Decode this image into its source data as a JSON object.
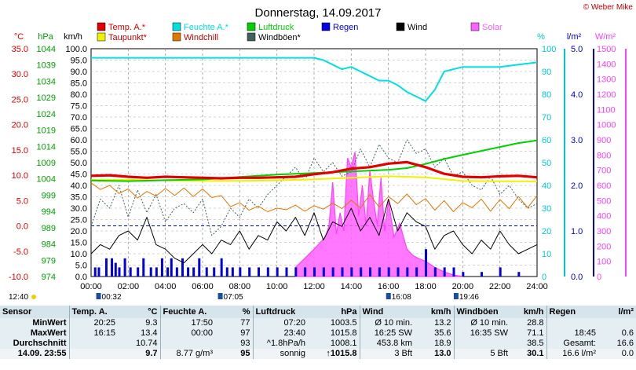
{
  "chart_data": {
    "type": "line",
    "title": "Donnerstag, 14.09.2017",
    "copyright": "© Weber Mike",
    "x_ticks": [
      "00:00",
      "02:00",
      "04:00",
      "06:00",
      "08:00",
      "10:00",
      "12:00",
      "14:00",
      "16:00",
      "18:00",
      "20:00",
      "22:00",
      "24:00"
    ],
    "axes": {
      "temp": {
        "unit": "°C",
        "ticks": [
          "35.0",
          "30.0",
          "25.0",
          "20.0",
          "15.0",
          "10.0",
          "5.0",
          "0.0",
          "-5.0",
          "-10.0"
        ],
        "range": [
          -10,
          35
        ],
        "color": "#e00000"
      },
      "press": {
        "unit": "hPa",
        "ticks": [
          "1044",
          "1039",
          "1034",
          "1029",
          "1024",
          "1019",
          "1014",
          "1009",
          "1004",
          "999",
          "994",
          "989",
          "984",
          "979",
          "974"
        ],
        "range": [
          974,
          1044
        ],
        "color": "#00b000"
      },
      "wind": {
        "unit": "km/h",
        "ticks": [
          "100.0",
          "95.0",
          "90.0",
          "85.0",
          "80.0",
          "75.0",
          "70.0",
          "65.0",
          "60.0",
          "55.0",
          "50.0",
          "45.0",
          "40.0",
          "35.0",
          "30.0",
          "25.0",
          "20.0",
          "15.0",
          "10.0",
          "5.0",
          "0.0"
        ],
        "range": [
          0,
          100
        ],
        "color": "#000000"
      },
      "hum": {
        "unit": "%",
        "ticks": [
          "100",
          "90",
          "80",
          "70",
          "60",
          "50",
          "40",
          "30",
          "20",
          "10",
          "0"
        ],
        "range": [
          0,
          100
        ],
        "color": "#00c8d0"
      },
      "rain": {
        "unit": "l/m²",
        "ticks": [
          "5.0",
          "4.0",
          "3.0",
          "2.0",
          "1.0",
          "0.0"
        ],
        "range": [
          0,
          5
        ],
        "color": "#0000c0"
      },
      "solar": {
        "unit": "W/m²",
        "ticks": [
          "1500",
          "1400",
          "1300",
          "1200",
          "1100",
          "1000",
          "900",
          "800",
          "700",
          "600",
          "500",
          "400",
          "300",
          "200",
          "100",
          "0"
        ],
        "range": [
          0,
          1500
        ],
        "color": "#ff40ff"
      }
    },
    "legend": [
      {
        "name": "Temp. A.*",
        "color": "#e00000"
      },
      {
        "name": "Feuchte A.*",
        "color": "#00e0e0"
      },
      {
        "name": "Luftdruck",
        "color": "#00d000"
      },
      {
        "name": "Regen",
        "color": "#0000e0"
      },
      {
        "name": "Wind",
        "color": "#000000"
      },
      {
        "name": "Solar",
        "color": "#ff60ff"
      },
      {
        "name": "Taupunkt*",
        "color": "#f0f000"
      },
      {
        "name": "Windchill",
        "color": "#e07800"
      },
      {
        "name": "Windböen*",
        "color": "#406060"
      }
    ],
    "series": [
      {
        "name": "Temp. A.*",
        "axis": "temp",
        "color": "#e00000",
        "width": 3.2,
        "x": [
          0,
          1,
          2,
          3,
          4,
          5,
          6,
          7,
          8,
          9,
          10,
          11,
          12,
          13,
          14,
          15,
          16,
          17,
          18,
          19,
          20,
          21,
          22,
          23,
          24
        ],
        "y": [
          9.9,
          10.0,
          9.7,
          9.5,
          9.7,
          9.6,
          9.5,
          9.4,
          9.5,
          9.5,
          9.6,
          9.7,
          10.2,
          10.6,
          11.3,
          11.6,
          12.3,
          12.6,
          11.6,
          10.3,
          9.7,
          9.6,
          9.8,
          9.9,
          9.6
        ]
      },
      {
        "name": "Feuchte A.*",
        "axis": "hum",
        "color": "#00e0e0",
        "width": 2,
        "x": [
          0,
          2,
          4,
          6,
          8,
          10,
          11,
          12,
          12.5,
          13,
          13.5,
          14,
          14.5,
          15,
          15.5,
          16,
          16.5,
          17,
          17.5,
          18,
          18.5,
          19,
          20,
          21,
          22,
          23,
          24
        ],
        "y": [
          96,
          96,
          96,
          96,
          96,
          96,
          96,
          96,
          95,
          93,
          91,
          92,
          90,
          88,
          86,
          86,
          84,
          81,
          79,
          77,
          82,
          90,
          92,
          92,
          92,
          93,
          94
        ]
      },
      {
        "name": "Luftdruck",
        "axis": "press",
        "color": "#00d000",
        "width": 2,
        "x": [
          0,
          2,
          4,
          6,
          8,
          10,
          12,
          14,
          16,
          17,
          18,
          19,
          20,
          21,
          22,
          23,
          24
        ],
        "y": [
          1003.5,
          1003.3,
          1003.6,
          1003.8,
          1004.6,
          1005.3,
          1005.8,
          1006.3,
          1006.8,
          1007.3,
          1008.6,
          1010.1,
          1011.4,
          1012.6,
          1013.8,
          1015.0,
          1015.8
        ]
      },
      {
        "name": "Taupunkt*",
        "axis": "temp",
        "color": "#f0f000",
        "width": 2,
        "x": [
          0,
          2,
          4,
          6,
          8,
          10,
          12,
          14,
          16,
          18,
          20,
          22,
          24
        ],
        "y": [
          9.1,
          9.1,
          9.0,
          8.9,
          8.9,
          9.0,
          9.2,
          9.5,
          9.8,
          9.6,
          8.9,
          8.8,
          8.8
        ]
      },
      {
        "name": "Windchill",
        "axis": "temp",
        "color": "#e07800",
        "width": 1,
        "x": [
          0,
          0.5,
          1,
          1.5,
          2,
          2.5,
          3,
          3.5,
          4,
          4.5,
          5,
          5.5,
          6,
          6.5,
          7,
          7.5,
          8,
          8.5,
          9,
          9.5,
          10,
          10.5,
          11,
          11.5,
          12,
          12.5,
          13,
          13.5,
          14,
          14.5,
          15,
          15.5,
          16,
          16.5,
          17,
          17.5,
          18,
          18.5,
          19,
          19.5,
          20,
          20.5,
          21,
          21.5,
          22,
          22.5,
          23,
          23.5,
          24
        ],
        "y": [
          8.5,
          7.2,
          8.0,
          6.4,
          7.3,
          5.5,
          6.8,
          5.9,
          7.4,
          6.0,
          7.5,
          5.8,
          7.3,
          5.6,
          6.0,
          3.8,
          4.6,
          3.1,
          3.9,
          2.8,
          3.5,
          3.2,
          4.1,
          2.9,
          4.0,
          3.3,
          4.5,
          3.4,
          5.1,
          3.5,
          6.2,
          3.7,
          5.8,
          4.4,
          6.3,
          4.2,
          5.4,
          3.1,
          5.0,
          2.8,
          4.6,
          3.6,
          5.3,
          2.9,
          5.2,
          3.4,
          5.8,
          3.6,
          6.0
        ]
      },
      {
        "name": "Windböen*",
        "axis": "wind",
        "color": "#406060",
        "width": 1,
        "dash": "2,2",
        "x": [
          0,
          0.5,
          1,
          1.5,
          2,
          2.5,
          3,
          3.5,
          4,
          4.5,
          5,
          5.5,
          6,
          6.5,
          7,
          7.5,
          8,
          8.5,
          9,
          9.5,
          10,
          10.5,
          11,
          11.5,
          12,
          12.5,
          13,
          13.5,
          14,
          14.5,
          15,
          15.5,
          16,
          16.5,
          17,
          17.5,
          18,
          18.5,
          19,
          19.5,
          20,
          20.5,
          21,
          21.5,
          22,
          22.5,
          23,
          23.5,
          24
        ],
        "y": [
          22,
          34,
          30,
          40,
          26,
          38,
          28,
          36,
          24,
          30,
          32,
          28,
          34,
          18,
          22,
          30,
          26,
          34,
          30,
          36,
          40,
          44,
          48,
          42,
          52,
          46,
          50,
          44,
          46,
          56,
          48,
          58,
          52,
          50,
          60,
          54,
          56,
          48,
          52,
          44,
          46,
          40,
          38,
          44,
          36,
          40,
          34,
          30,
          32
        ]
      },
      {
        "name": "Wind",
        "axis": "wind",
        "color": "#000000",
        "width": 1,
        "x": [
          0,
          0.5,
          1,
          1.5,
          2,
          2.5,
          3,
          3.5,
          4,
          4.5,
          5,
          5.5,
          6,
          6.5,
          7,
          7.5,
          8,
          8.5,
          9,
          9.5,
          10,
          10.5,
          11,
          11.5,
          12,
          12.5,
          13,
          13.5,
          14,
          14.5,
          15,
          15.5,
          16,
          16.5,
          17,
          17.5,
          18,
          18.5,
          19,
          19.5,
          20,
          20.5,
          21,
          21.5,
          22,
          22.5,
          23,
          23.5,
          24
        ],
        "y": [
          10,
          14,
          12,
          18,
          20,
          16,
          26,
          14,
          12,
          8,
          6,
          10,
          14,
          10,
          16,
          14,
          20,
          12,
          18,
          16,
          24,
          20,
          26,
          18,
          28,
          16,
          24,
          22,
          30,
          20,
          26,
          18,
          34,
          20,
          28,
          24,
          22,
          12,
          18,
          20,
          14,
          10,
          16,
          12,
          20,
          14,
          10,
          12,
          14
        ]
      }
    ],
    "solar": {
      "axis": "solar",
      "color": "#ff40ff",
      "x": [
        11.0,
        11.5,
        12.0,
        12.3,
        12.6,
        12.8,
        13.0,
        13.2,
        13.4,
        13.6,
        13.8,
        14.0,
        14.2,
        14.4,
        14.6,
        14.8,
        15.0,
        15.2,
        15.4,
        15.6,
        15.8,
        16.0,
        16.3,
        16.6,
        17.0,
        17.3,
        17.6,
        18.0,
        18.5,
        19.0,
        19.5,
        20.0
      ],
      "y": [
        60,
        120,
        180,
        220,
        260,
        330,
        620,
        280,
        420,
        300,
        780,
        720,
        820,
        400,
        600,
        330,
        700,
        500,
        340,
        650,
        300,
        500,
        260,
        350,
        180,
        140,
        120,
        100,
        60,
        30,
        10,
        0
      ]
    },
    "rain_bars": {
      "axis": "rain",
      "color": "#0000e0",
      "x": [
        0.2,
        0.4,
        0.8,
        1.1,
        1.3,
        1.5,
        1.8,
        2.1,
        2.5,
        2.8,
        3.2,
        3.5,
        3.8,
        4.1,
        4.3,
        4.6,
        4.9,
        5.2,
        5.5,
        5.8,
        6.2,
        6.6,
        7.0,
        7.3,
        7.6,
        8.0,
        8.5,
        9.0,
        9.5,
        10.0,
        10.5,
        11.0,
        11.5,
        12.0,
        12.5,
        13.0,
        13.5,
        14.0,
        14.5,
        15.0,
        15.5,
        16.0,
        16.5,
        17.0,
        17.5,
        18.0,
        18.5,
        19.0,
        19.5,
        20.0,
        21.0,
        22.0,
        23.0
      ],
      "y": [
        0.2,
        0.2,
        0.4,
        0.4,
        0.3,
        0.2,
        0.4,
        0.2,
        0.2,
        0.4,
        0.2,
        0.2,
        0.4,
        0.2,
        0.4,
        0.2,
        0.4,
        0.2,
        0.2,
        0.4,
        0.2,
        0.2,
        0.4,
        0.2,
        0.2,
        0.2,
        0.2,
        0.2,
        0.2,
        0.2,
        0.2,
        0.2,
        0.2,
        0.2,
        0.2,
        0.2,
        0.2,
        0.2,
        0.2,
        0.2,
        0.2,
        0.2,
        0.2,
        0.2,
        0.2,
        0.6,
        0.2,
        0.2,
        0.2,
        0.1,
        0.1,
        0.2,
        0.1
      ]
    },
    "sun_events": [
      {
        "label": "12:40",
        "pos": "left"
      },
      {
        "label": "00:32",
        "x": 0.53
      },
      {
        "label": "07:05",
        "x": 7.08
      },
      {
        "label": "16:08",
        "x": 16.13
      },
      {
        "label": "19:46",
        "x": 19.77
      }
    ]
  },
  "stats": {
    "headers": [
      "Sensor",
      "Temp. A.",
      "°C",
      "Feuchte A.",
      "%",
      "Luftdruck",
      "hPa",
      "Wind",
      "km/h",
      "Windböen",
      "km/h",
      "Regen",
      "l/m²"
    ],
    "rows": [
      [
        "MinWert",
        "20:25",
        "9.3",
        "17:50",
        "77",
        "07:20",
        "1003.5",
        "Ø 10 min.",
        "13.2",
        "Ø 10 min.",
        "28.8",
        "",
        ""
      ],
      [
        "MaxWert",
        "16:15",
        "13.4",
        "00:00",
        "97",
        "23:40",
        "1015.8",
        "16:25 SW",
        "35.6",
        "16:35 SW",
        "71.1",
        "18:45",
        "0.6"
      ],
      [
        "Durchschnitt",
        "",
        "10.74",
        "",
        "93",
        "^1.8hPa/h",
        "1008.1",
        "453.8 km",
        "18.9",
        "",
        "38.5",
        "Gesamt:",
        "16.6"
      ],
      [
        "14.09.  23:55",
        "",
        "9.7",
        "8.77 g/m³",
        "95",
        "sonnig",
        "↑1015.8",
        "3 Bft",
        "13.0",
        "5 Bft",
        "30.1",
        "16.6 l/m²",
        "0.0"
      ]
    ]
  }
}
